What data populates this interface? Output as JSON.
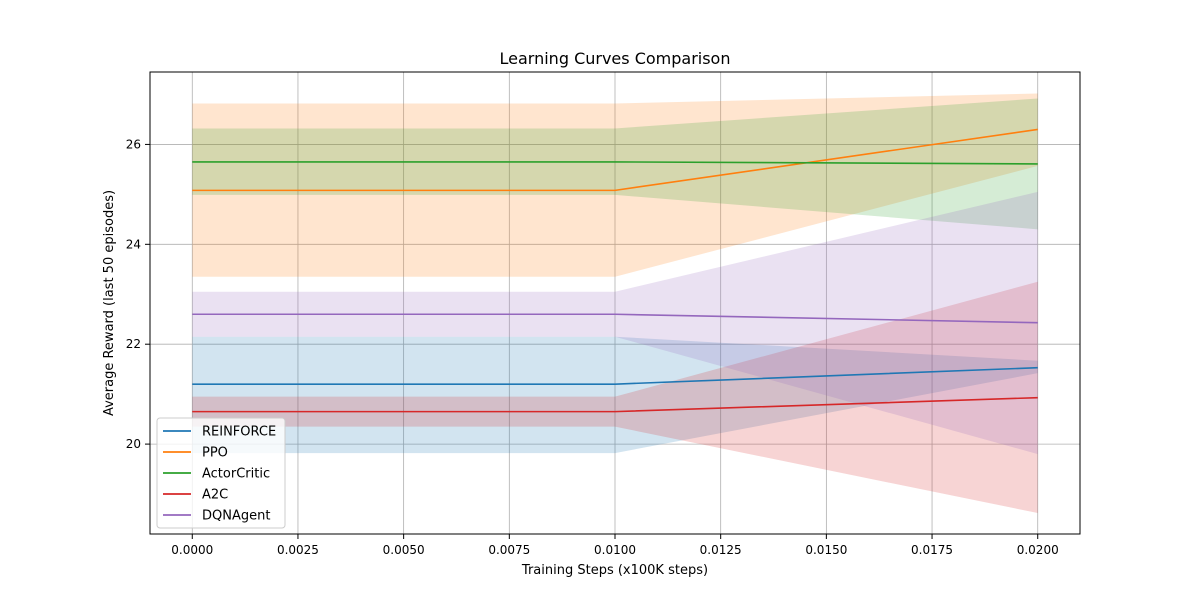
{
  "chart_data": {
    "type": "line",
    "title": "Learning Curves Comparison",
    "xlabel": "Training Steps (x100K steps)",
    "ylabel": "Average Reward (last 50 episodes)",
    "x": [
      0.0,
      0.01,
      0.02
    ],
    "xlim": [
      -0.001,
      0.021
    ],
    "ylim": [
      18.2,
      27.45
    ],
    "xticks": [
      {
        "value": 0.0,
        "label": "0.0000"
      },
      {
        "value": 0.0025,
        "label": "0.0025"
      },
      {
        "value": 0.005,
        "label": "0.0050"
      },
      {
        "value": 0.0075,
        "label": "0.0075"
      },
      {
        "value": 0.01,
        "label": "0.0100"
      },
      {
        "value": 0.0125,
        "label": "0.0125"
      },
      {
        "value": 0.015,
        "label": "0.0150"
      },
      {
        "value": 0.0175,
        "label": "0.0175"
      },
      {
        "value": 0.02,
        "label": "0.0200"
      }
    ],
    "yticks": [
      {
        "value": 20,
        "label": "20"
      },
      {
        "value": 22,
        "label": "22"
      },
      {
        "value": 24,
        "label": "24"
      },
      {
        "value": 26,
        "label": "26"
      }
    ],
    "grid": true,
    "legend_position": "lower-left",
    "series": [
      {
        "name": "REINFORCE",
        "color": "#1f77b4",
        "values": [
          21.2,
          21.2,
          21.53
        ],
        "lower": [
          19.82,
          19.82,
          21.42
        ],
        "upper": [
          22.15,
          22.15,
          21.67
        ]
      },
      {
        "name": "PPO",
        "color": "#ff7f0e",
        "values": [
          25.08,
          25.08,
          26.3
        ],
        "lower": [
          23.35,
          23.35,
          25.57
        ],
        "upper": [
          26.82,
          26.82,
          27.02
        ]
      },
      {
        "name": "ActorCritic",
        "color": "#2ca02c",
        "values": [
          25.65,
          25.65,
          25.61
        ],
        "lower": [
          24.99,
          24.99,
          24.3
        ],
        "upper": [
          26.32,
          26.32,
          26.92
        ]
      },
      {
        "name": "A2C",
        "color": "#d62728",
        "values": [
          20.65,
          20.65,
          20.93
        ],
        "lower": [
          20.35,
          20.35,
          18.62
        ],
        "upper": [
          20.95,
          20.95,
          23.25
        ]
      },
      {
        "name": "DQNAgent",
        "color": "#9467bd",
        "values": [
          22.6,
          22.6,
          22.43
        ],
        "lower": [
          22.15,
          22.15,
          19.8
        ],
        "upper": [
          23.05,
          23.05,
          25.05
        ]
      }
    ]
  }
}
